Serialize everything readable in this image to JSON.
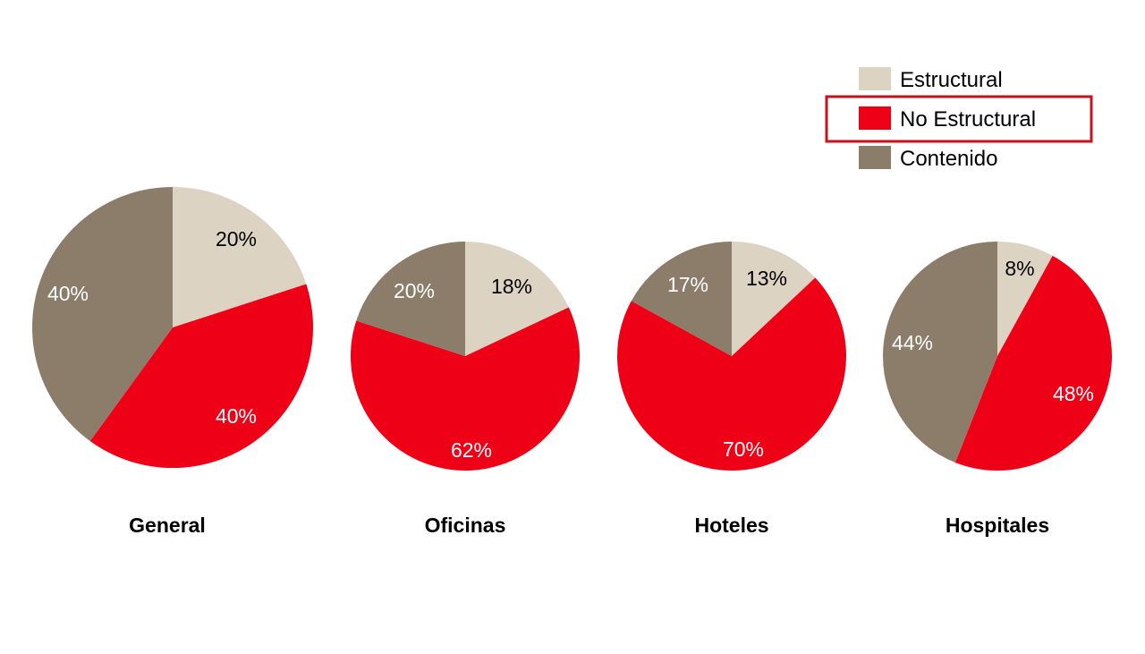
{
  "colors": {
    "estructural": "#DDD3C3",
    "no_estructural": "#EE0017",
    "contenido": "#8C7D6B",
    "highlight_box": "#C8101E",
    "label_dark": "#000000",
    "label_light": "#ffffff"
  },
  "chart_data": {
    "type": "pie",
    "series_names": [
      "Estructural",
      "No Estructural",
      "Contenido"
    ],
    "legend": {
      "placement": "top-right",
      "highlighted": "No Estructural"
    },
    "charts": [
      {
        "category": "General",
        "values": [
          20,
          40,
          40
        ],
        "labels": [
          "20%",
          "40%",
          "40%"
        ]
      },
      {
        "category": "Oficinas",
        "values": [
          18,
          62,
          20
        ],
        "labels": [
          "18%",
          "62%",
          "20%"
        ]
      },
      {
        "category": "Hoteles",
        "values": [
          13,
          70,
          17
        ],
        "labels": [
          "13%",
          "70%",
          "17%"
        ]
      },
      {
        "category": "Hospitales",
        "values": [
          8,
          48,
          44
        ],
        "labels": [
          "8%",
          "48%",
          "44%"
        ]
      }
    ]
  }
}
